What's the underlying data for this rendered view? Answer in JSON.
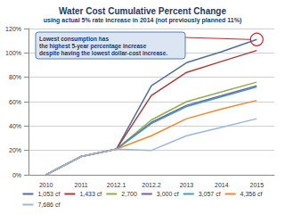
{
  "chart_data": {
    "type": "line",
    "title": "Water Cost Cumulative Percent Change",
    "subtitle": "using actual 5% rate increase in 2014 (not previously planned 11%)",
    "categories": [
      "2010",
      "2011",
      "2012.1",
      "2012.2",
      "2013",
      "2014",
      "2015"
    ],
    "series": [
      {
        "name": "1,053 cf",
        "color": "#4f6f9e",
        "values": [
          0,
          15,
          21,
          73,
          92,
          101,
          111
        ]
      },
      {
        "name": "1,433 cf",
        "color": "#b03a3a",
        "values": [
          0,
          15,
          21,
          65,
          84,
          93,
          102
        ]
      },
      {
        "name": "2,700",
        "color": "#8cb04a",
        "values": [
          0,
          15,
          21,
          45,
          60,
          68,
          76
        ]
      },
      {
        "name": "3,000 cf",
        "color": "#7a5c9e",
        "values": [
          0,
          15,
          21,
          43,
          57,
          65,
          73
        ]
      },
      {
        "name": "3,057 cf",
        "color": "#3fa0b8",
        "values": [
          0,
          15,
          21,
          42,
          56,
          64,
          72
        ]
      },
      {
        "name": "4,356 cf",
        "color": "#f08a2c",
        "values": [
          0,
          15,
          21,
          32,
          46,
          54,
          61
        ]
      },
      {
        "name": "7,686 cf",
        "color": "#9ab7dc",
        "values": [
          0,
          15,
          21,
          20,
          32,
          39,
          46
        ]
      }
    ],
    "ylim": [
      0,
      120
    ],
    "yticks": [
      {
        "value": 0,
        "label": "0%"
      },
      {
        "value": 20,
        "label": "20%"
      },
      {
        "value": 40,
        "label": "40%"
      },
      {
        "value": 60,
        "label": "60%"
      },
      {
        "value": 80,
        "label": "80%"
      },
      {
        "value": 100,
        "label": "100%"
      },
      {
        "value": 120,
        "label": "120%"
      }
    ],
    "grid": true,
    "legend": "bottom",
    "annotations": [
      {
        "text": "Lowest consumption has\nthe highest 5-year percentage increase\ndespite having the lowest dollar-cost increase."
      }
    ]
  }
}
